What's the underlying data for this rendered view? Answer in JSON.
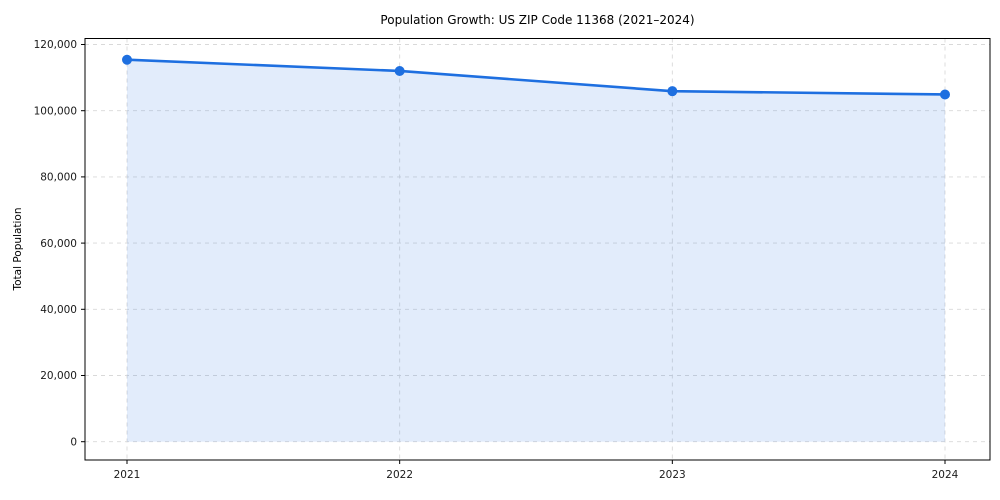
{
  "chart_data": {
    "type": "line",
    "x": [
      "2021",
      "2022",
      "2023",
      "2024"
    ],
    "series": [
      {
        "name": "Total Population",
        "values": [
          115400,
          112000,
          105900,
          104900
        ]
      }
    ],
    "title": "Population Growth: US ZIP Code 11368 (2021–2024)",
    "xlabel": "",
    "ylabel": "Total Population",
    "ylim": [
      0,
      120000
    ],
    "yticks": [
      0,
      20000,
      40000,
      60000,
      80000,
      100000,
      120000
    ],
    "ytick_labels": [
      "0",
      "20,000",
      "40,000",
      "60,000",
      "80,000",
      "100,000",
      "120,000"
    ],
    "grid": true,
    "grid_style": "dashed",
    "legend": "none",
    "area_fill": true,
    "marker": "circle",
    "colors": {
      "line": "#1e6fe0",
      "area_fill": "rgba(30,111,224,0.13)",
      "grid": "#d9d9d9",
      "frame": "#000000",
      "tick_text": "#1a1a1a"
    }
  }
}
